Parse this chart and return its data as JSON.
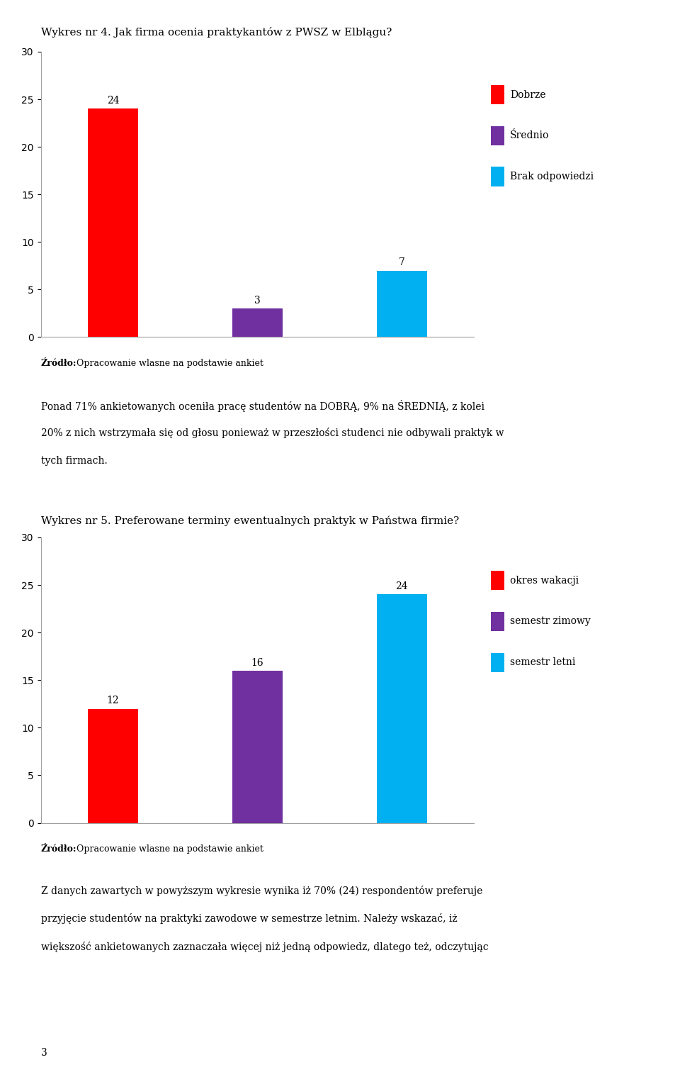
{
  "chart1": {
    "title": "Wykres nr 4. Jak firma ocenia praktykantów z PWSZ w Elblągu?",
    "categories": [
      "Dobrze",
      "Średnio",
      "Brak odpowiedzi"
    ],
    "values": [
      24,
      3,
      7
    ],
    "colors": [
      "#ff0000",
      "#7030a0",
      "#00b0f0"
    ],
    "ylim": [
      0,
      30
    ],
    "yticks": [
      0,
      5,
      10,
      15,
      20,
      25,
      30
    ],
    "legend_labels": [
      "Dobrze",
      "Średnio",
      "Brak odpowiedzi"
    ],
    "source_bold": "Źródło:",
    "source_normal": " Opracowanie wlasne na podstawie ankiet"
  },
  "text1_lines": [
    "Ponad 71% ankietowanych oceniła pracę studentów na DOBRĄ, 9% na ŚREDNIĄ, z kolei",
    "20% z nich wstrzymała się od głosu ponieważ w przeszłości studenci nie odbywali praktyk w",
    "tych firmach."
  ],
  "chart2_title": "Wykres nr 5. Preferowane terminy ewentualnych praktyk w Państwa firmie?",
  "chart2": {
    "categories": [
      "okres wakacji",
      "semestr zimowy",
      "semestr letni"
    ],
    "values": [
      12,
      16,
      24
    ],
    "colors": [
      "#ff0000",
      "#7030a0",
      "#00b0f0"
    ],
    "ylim": [
      0,
      30
    ],
    "yticks": [
      0,
      5,
      10,
      15,
      20,
      25,
      30
    ],
    "legend_labels": [
      "okres wakacji",
      "semestr zimowy",
      "semestr letni"
    ],
    "source_bold": "Źródło:",
    "source_normal": " Opracowanie wlasne na podstawie ankiet"
  },
  "text2_lines": [
    "Z danych zawartych w powyższym wykresie wynika iż 70% (24) respondentów preferuje",
    "przyjęcie studentów na praktyki zawodowe w semestrze letnim. Należy wskazać, iż",
    "większość ankietowanych zaznaczała więcej niż jedną odpowiedz, dlatego też, odczytując"
  ],
  "page_number": "3",
  "background_color": "#ffffff",
  "chart_bg": "#ffffff",
  "font_size_title": 11,
  "font_size_axis": 10,
  "font_size_legend": 10,
  "font_size_label": 10,
  "font_size_source": 9,
  "font_size_body": 10
}
